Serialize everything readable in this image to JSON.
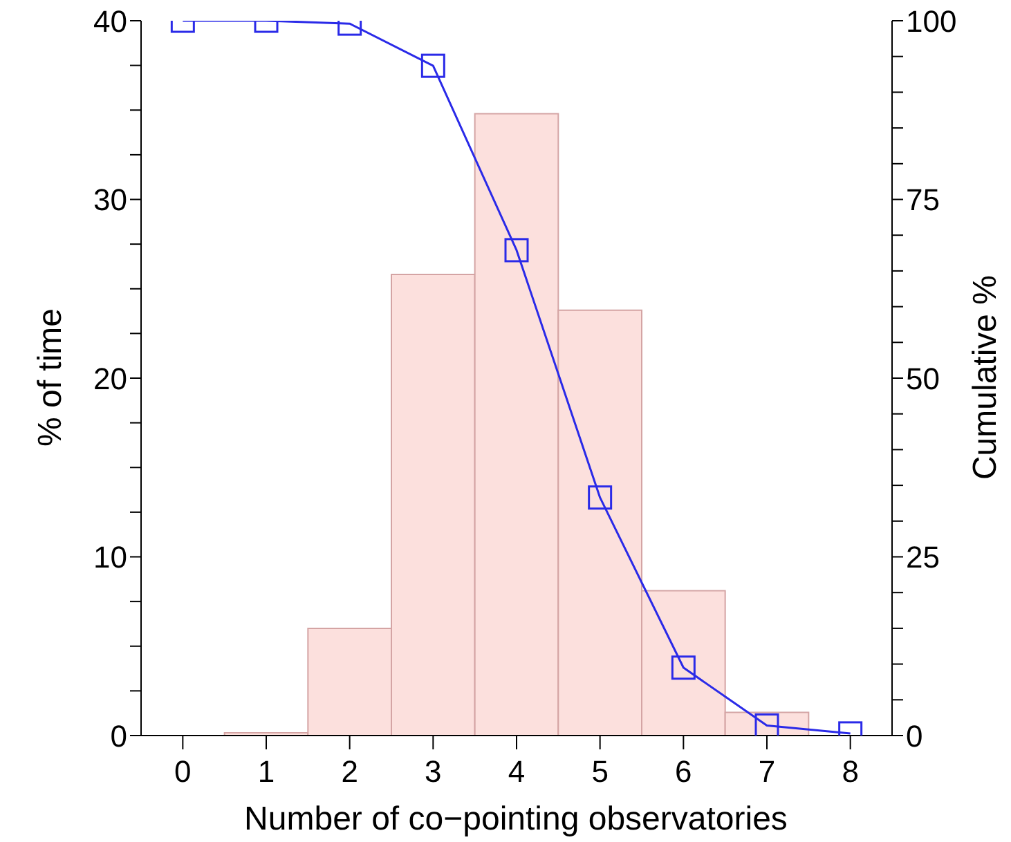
{
  "chart_data": {
    "type": "histogram",
    "xlabel": "Number of co−pointing observatories",
    "ylabel": "% of time",
    "y2label": "Cumulative %",
    "bins": [
      -0.5,
      0.5,
      1.5,
      2.5,
      3.5,
      4.5,
      5.5,
      6.5,
      7.5,
      8.5
    ],
    "values": [
      0,
      0.15,
      6.0,
      25.8,
      34.8,
      23.8,
      8.1,
      1.3,
      0
    ],
    "color": "#fce0dd",
    "xlim": [
      -0.5,
      8.5
    ],
    "xticks": [
      0,
      1,
      2,
      3,
      4,
      5,
      6,
      7,
      8
    ],
    "ylim": [
      0,
      40
    ],
    "yticks": [
      0,
      {
        "value": 2.5,
        "label": null
      },
      {
        "value": 5,
        "label": null
      },
      {
        "value": 7.5,
        "label": null
      },
      10,
      {
        "value": 12.5,
        "label": null
      },
      {
        "value": 15,
        "label": null
      },
      {
        "value": 17.5,
        "label": null
      },
      20,
      {
        "value": 22.5,
        "label": null
      },
      {
        "value": 25,
        "label": null
      },
      {
        "value": 27.5,
        "label": null
      },
      30,
      {
        "value": 32.5,
        "label": null
      },
      {
        "value": 35,
        "label": null
      },
      {
        "value": 37.5,
        "label": null
      },
      40
    ],
    "y2lim": [
      0,
      100
    ],
    "y2ticks": [
      0,
      {
        "value": 5,
        "label": null
      },
      {
        "value": 10,
        "label": null
      },
      {
        "value": 15,
        "label": null
      },
      {
        "value": 20,
        "label": null
      },
      25,
      {
        "value": 30,
        "label": null
      },
      {
        "value": 35,
        "label": null
      },
      {
        "value": 40,
        "label": null
      },
      {
        "value": 45,
        "label": null
      },
      50,
      {
        "value": 55,
        "label": null
      },
      {
        "value": 60,
        "label": null
      },
      {
        "value": 65,
        "label": null
      },
      {
        "value": 70,
        "label": null
      },
      75,
      {
        "value": 80,
        "label": null
      },
      {
        "value": 85,
        "label": null
      },
      {
        "value": 90,
        "label": null
      },
      {
        "value": 95,
        "label": null
      },
      100
    ],
    "series": [
      {
        "type": "line",
        "axis": "y2",
        "color": "#2a2ae8",
        "marker": "square",
        "x": [
          0,
          1,
          2,
          3,
          4,
          5,
          6,
          7,
          8
        ],
        "values": [
          100,
          100,
          99.6,
          93.7,
          67.9,
          33.3,
          9.5,
          1.4,
          0.3
        ]
      }
    ],
    "grid": false
  }
}
